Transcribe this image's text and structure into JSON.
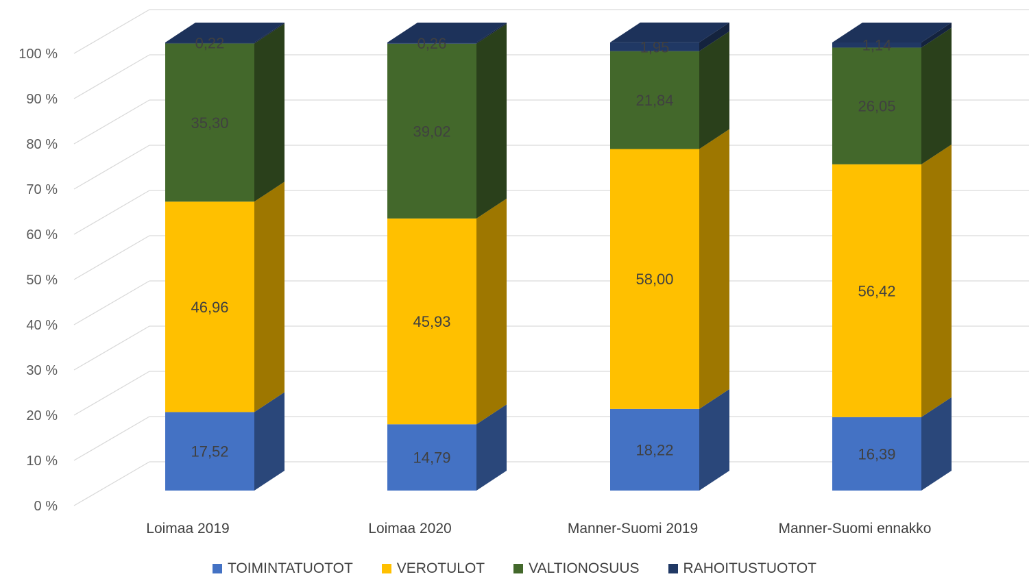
{
  "chart_data": {
    "type": "bar",
    "stacked": true,
    "three_d": true,
    "categories": [
      "Loimaa 2019",
      "Loimaa 2020",
      "Manner-Suomi 2019",
      "Manner-Suomi ennakko"
    ],
    "series": [
      {
        "name": "TOIMINTATUOTOT",
        "color": "#4472c4",
        "values": [
          17.52,
          14.79,
          18.22,
          16.39
        ]
      },
      {
        "name": "VEROTULOT",
        "color": "#ffc000",
        "values": [
          46.96,
          45.93,
          58.0,
          56.42
        ]
      },
      {
        "name": "VALTIONOSUUS",
        "color": "#43682b",
        "values": [
          35.3,
          39.02,
          21.84,
          26.05
        ]
      },
      {
        "name": "RAHOITUSTUOTOT",
        "color": "#203864",
        "values": [
          0.22,
          0.26,
          1.95,
          1.14
        ]
      }
    ],
    "data_labels": [
      [
        "17,52",
        "14,79",
        "18,22",
        "16,39"
      ],
      [
        "46,96",
        "45,93",
        "58,00",
        "56,42"
      ],
      [
        "35,30",
        "39,02",
        "21,84",
        "26,05"
      ],
      [
        "0,22",
        "0,26",
        "1,95",
        "1,14"
      ]
    ],
    "y_ticks": [
      "0 %",
      "10 %",
      "20 %",
      "30 %",
      "40 %",
      "50 %",
      "60 %",
      "70 %",
      "80 %",
      "90 %",
      "100 %"
    ],
    "ylim": [
      0,
      100
    ],
    "grid": true,
    "legend_position": "bottom"
  }
}
